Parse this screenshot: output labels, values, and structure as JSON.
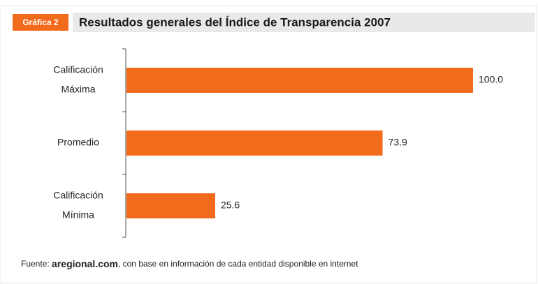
{
  "chart_data": {
    "type": "hbar",
    "badge": "Gráfica 2",
    "title": "Resultados generales del Índice de Transparencia 2007",
    "categories": [
      [
        "Calificación",
        "Máxima"
      ],
      [
        "Promedio"
      ],
      [
        "Calificación",
        "Mínima"
      ]
    ],
    "values": [
      100.0,
      73.9,
      25.6
    ],
    "value_labels": [
      "100.0",
      "73.9",
      "25.6"
    ],
    "color": "#f26a1b",
    "xlim": [
      0,
      100
    ],
    "source": {
      "label": "Fuente:",
      "brand": "aregional.com",
      "text": ", con base en información de cada entidad disponible en internet"
    }
  }
}
